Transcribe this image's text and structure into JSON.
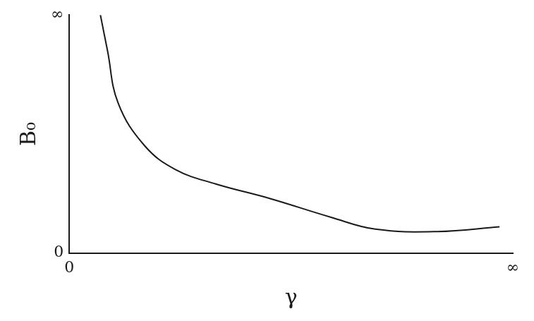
{
  "chart_data": {
    "type": "line",
    "x_label": "γ",
    "y_label": "B₀",
    "x": [
      0.7,
      0.86,
      1.1,
      1.7,
      2.4,
      3.3,
      4.5,
      5.9,
      6.9,
      8.3,
      9.7
    ],
    "values": [
      10,
      8.5,
      6.3,
      4.5,
      3.5,
      2.9,
      2.3,
      1.5,
      1.0,
      0.9,
      1.1
    ],
    "color": "#1a1a1a",
    "xlim": [
      0,
      10
    ],
    "xticks": [
      0,
      {
        "value": 10,
        "label": "∞"
      }
    ],
    "ylim": [
      0,
      10
    ],
    "yticks": [
      0,
      {
        "value": 10,
        "label": "∞"
      }
    ],
    "grid": false
  }
}
